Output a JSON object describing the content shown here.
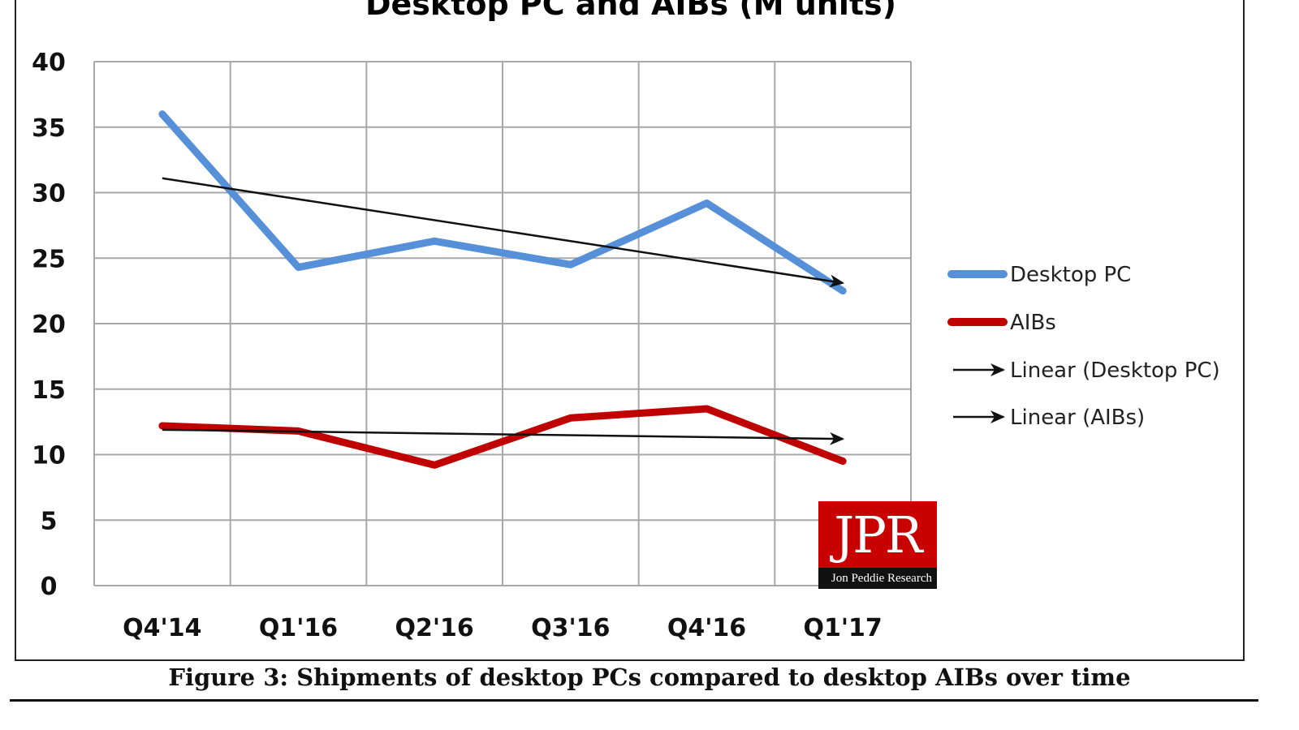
{
  "chart_data": {
    "type": "line",
    "title": "Desktop PC and AIBs (M units)",
    "categories": [
      "Q4'14",
      "Q1'16",
      "Q2'16",
      "Q3'16",
      "Q4'16",
      "Q1'17"
    ],
    "ylim": [
      0,
      40
    ],
    "yticks": [
      "0",
      "5",
      "10",
      "15",
      "20",
      "25",
      "30",
      "35",
      "40"
    ],
    "grid": true,
    "legend_position": "right",
    "series": [
      {
        "name": "Desktop PC",
        "values": [
          36.0,
          24.3,
          26.3,
          24.5,
          29.2,
          22.5
        ],
        "color": "#5590d9"
      },
      {
        "name": "AIBs",
        "values": [
          12.2,
          11.8,
          9.2,
          12.8,
          13.5,
          9.5
        ],
        "color": "#c00000"
      }
    ],
    "trendlines": [
      {
        "name": "Linear (Desktop PC)",
        "start": 31.1,
        "end": 23.1,
        "color": "#111111"
      },
      {
        "name": "Linear (AIBs)",
        "start": 11.9,
        "end": 11.2,
        "color": "#111111"
      }
    ],
    "caption": "Figure 3: Shipments of desktop PCs compared to desktop AIBs over time",
    "logo": {
      "text": "JPR",
      "subtext": "Jon Peddie Research",
      "color": "#c80000"
    }
  }
}
